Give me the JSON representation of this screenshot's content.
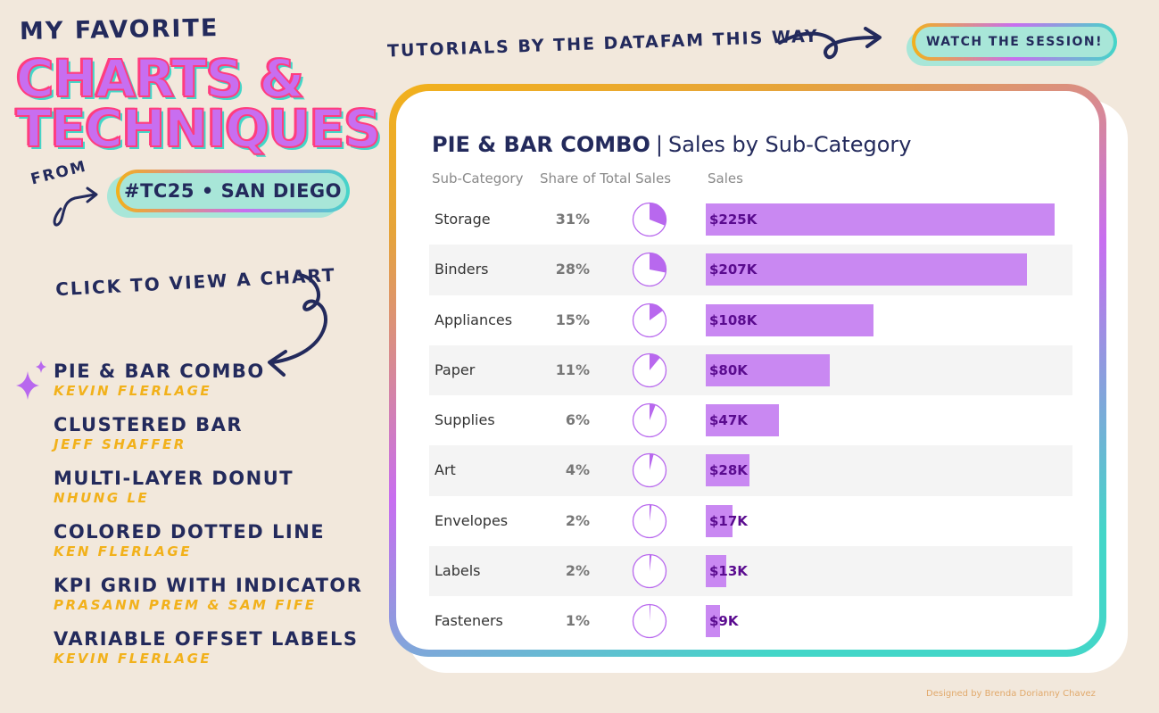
{
  "header": {
    "kicker": "MY FAVORITE",
    "title_line1": "CHARTS &",
    "title_line2": "TECHNIQUES",
    "from_label": "FROM",
    "event_pill": "#TC25 • SAN DIEGO",
    "tutorial_text": "TUTORIALS BY THE DATAFAM THIS WAY",
    "watch_button": "WATCH THE SESSION!"
  },
  "menu": {
    "prompt": "CLICK TO VIEW A CHART",
    "items": [
      {
        "title": "PIE & BAR COMBO",
        "author": "KEVIN FLERLAGE",
        "selected": true
      },
      {
        "title": "CLUSTERED BAR",
        "author": "JEFF SHAFFER",
        "selected": false
      },
      {
        "title": "MULTI-LAYER DONUT",
        "author": "NHUNG LE",
        "selected": false
      },
      {
        "title": "COLORED DOTTED LINE",
        "author": "KEN FLERLAGE",
        "selected": false
      },
      {
        "title": "KPI GRID WITH INDICATOR",
        "author": "PRASANN PREM & SAM FIFE",
        "selected": false
      },
      {
        "title": "VARIABLE OFFSET LABELS",
        "author": "KEVIN FLERLAGE",
        "selected": false
      }
    ]
  },
  "card": {
    "title_bold": "PIE & BAR COMBO",
    "title_separator": "|",
    "title_rest": "Sales by Sub-Category",
    "col_subcategory": "Sub-Category",
    "col_share": "Share of Total Sales",
    "col_sales": "Sales"
  },
  "chart_data": {
    "type": "bar",
    "categories": [
      "Storage",
      "Binders",
      "Appliances",
      "Paper",
      "Supplies",
      "Art",
      "Envelopes",
      "Labels",
      "Fasteners"
    ],
    "share_labels": [
      "31%",
      "28%",
      "15%",
      "11%",
      "6%",
      "4%",
      "2%",
      "2%",
      "1%"
    ],
    "share": [
      31,
      28,
      15,
      11,
      6,
      4,
      2,
      2,
      1
    ],
    "values": [
      225,
      207,
      108,
      80,
      47,
      28,
      17,
      13,
      9
    ],
    "value_labels": [
      "$225K",
      "$207K",
      "$108K",
      "$80K",
      "$47K",
      "$28K",
      "$17K",
      "$13K",
      "$9K"
    ],
    "ylim": [
      0,
      225
    ],
    "bar_color": "#c988f2",
    "pie_color": "#b868ee"
  },
  "colors": {
    "background": "#f2e8dc",
    "navy": "#232a5c",
    "accent_yellow": "#f2b11b",
    "accent_purple": "#c86ef0",
    "accent_teal": "#43d6c8",
    "pill_fill": "#a8e6d8"
  },
  "credit": "Designed by Brenda Dorianny Chavez"
}
